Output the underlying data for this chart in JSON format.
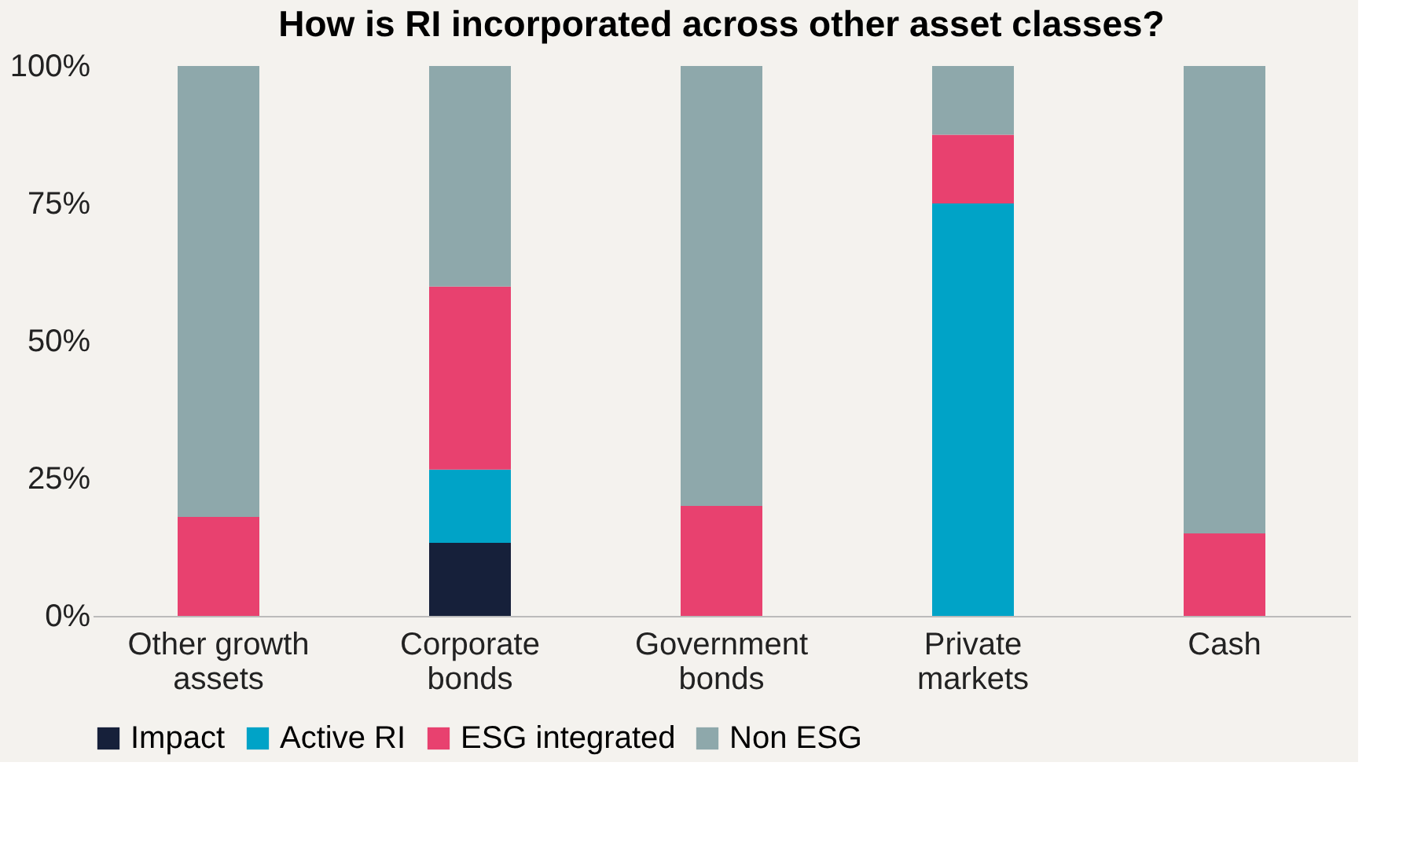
{
  "chart_data": {
    "type": "bar",
    "stacked": true,
    "title": "How is RI incorporated across other asset classes?",
    "categories": [
      "Other growth assets",
      "Corporate bonds",
      "Government bonds",
      "Private markets",
      "Cash"
    ],
    "series": [
      {
        "name": "Impact",
        "color": "#16203a",
        "values": [
          0,
          13.3,
          0,
          0,
          0
        ]
      },
      {
        "name": "Active RI",
        "color": "#00a3c7",
        "values": [
          0,
          13.3,
          0,
          75,
          0
        ]
      },
      {
        "name": "ESG integrated",
        "color": "#e8416f",
        "values": [
          18,
          33.3,
          20,
          12.5,
          15
        ]
      },
      {
        "name": "Non ESG",
        "color": "#8ea8ab",
        "values": [
          82,
          40.1,
          80,
          12.5,
          85
        ]
      }
    ],
    "ylim": [
      0,
      100
    ],
    "yticks": [
      {
        "value": 0,
        "label": "0%"
      },
      {
        "value": 25,
        "label": "25%"
      },
      {
        "value": 50,
        "label": "50%"
      },
      {
        "value": 75,
        "label": "75%"
      },
      {
        "value": 100,
        "label": "100%"
      }
    ],
    "grid": false,
    "legend": "bottom"
  }
}
